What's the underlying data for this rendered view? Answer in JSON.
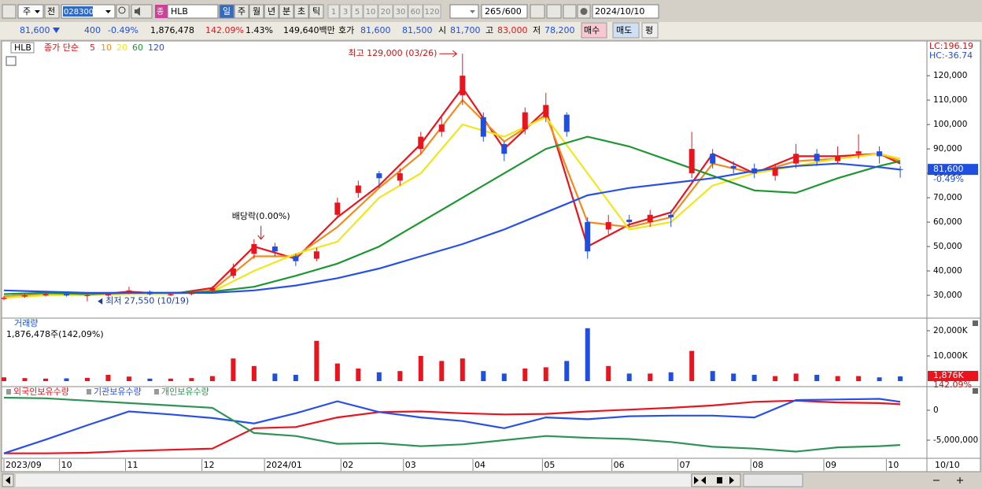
{
  "toolbar": {
    "market": "주",
    "prev": "전",
    "code": "028300",
    "type_badge": "종",
    "name": "HLB",
    "periods": [
      "일",
      "주",
      "월",
      "년",
      "분",
      "초",
      "틱"
    ],
    "intervals": [
      "1",
      "3",
      "5",
      "10",
      "20",
      "30",
      "60",
      "120"
    ],
    "count": "265",
    "max": "/600",
    "date": "2024/10/10"
  },
  "quote": {
    "price": "81,600",
    "change": "400",
    "change_rate": "-0.49%",
    "volume": "1,876,478",
    "volume_ratio": "142.09%",
    "turnover": "1.43%",
    "amount": "149,640백만",
    "bid_ask_label": "호가",
    "ask": "81,600",
    "bid": "81,500",
    "open_label": "시",
    "open": "81,700",
    "high_label": "고",
    "high": "83,000",
    "low_label": "저",
    "low": "78,200",
    "buy": "매수",
    "sell": "매도",
    "avg": "평"
  },
  "chart_data": [
    {
      "type": "candlestick",
      "title": "HLB",
      "subtitle": "종가 단순",
      "up_color": "#e8141e",
      "down_color": "#1e4fe0",
      "x": [
        0,
        6,
        12,
        18,
        24,
        30,
        36,
        42,
        48,
        54,
        60,
        66,
        72,
        78,
        84,
        90,
        96,
        102,
        108,
        114,
        120,
        126,
        132,
        138,
        144,
        150,
        156,
        162,
        168,
        174,
        180,
        186,
        192,
        198,
        204,
        210,
        216,
        222,
        228,
        234,
        240,
        246,
        252,
        258
      ],
      "open": [
        28500,
        29500,
        30000,
        30500,
        29800,
        30000,
        31000,
        31500,
        30000,
        30500,
        32000,
        38000,
        47000,
        50000,
        46000,
        45000,
        63000,
        72000,
        80000,
        77000,
        90000,
        97000,
        112000,
        103000,
        92000,
        98000,
        103000,
        104000,
        60000,
        57000,
        61000,
        60000,
        63000,
        80000,
        88000,
        83000,
        82000,
        79000,
        84000,
        88000,
        85000,
        88000,
        89000,
        81700
      ],
      "high": [
        29800,
        30600,
        31000,
        31000,
        30500,
        31000,
        33500,
        32000,
        31000,
        31500,
        33800,
        43000,
        53000,
        51500,
        47000,
        49500,
        70000,
        77000,
        81000,
        82000,
        97000,
        103000,
        129000,
        105000,
        93000,
        107000,
        113000,
        105000,
        62000,
        63000,
        63000,
        65000,
        65000,
        97000,
        90000,
        85000,
        84000,
        84000,
        92000,
        90000,
        91000,
        96000,
        91000,
        83000
      ],
      "low": [
        28000,
        29000,
        29500,
        29500,
        27550,
        29600,
        30500,
        30000,
        29700,
        30000,
        31500,
        37000,
        45000,
        46000,
        42000,
        44000,
        62000,
        70000,
        74000,
        75000,
        88000,
        95000,
        108000,
        93000,
        85000,
        96000,
        101000,
        95000,
        45000,
        55000,
        58000,
        58000,
        58000,
        78000,
        82000,
        80000,
        78000,
        77000,
        82000,
        83000,
        84000,
        86000,
        84000,
        78200
      ],
      "close": [
        29000,
        30000,
        30500,
        30000,
        30000,
        30500,
        32000,
        30500,
        30500,
        31000,
        33000,
        41000,
        51000,
        48000,
        44000,
        48000,
        68000,
        75000,
        78000,
        80000,
        95000,
        100000,
        120000,
        95000,
        88000,
        105000,
        108000,
        97000,
        48000,
        60000,
        60000,
        63000,
        62000,
        90000,
        84000,
        82000,
        80000,
        82000,
        88000,
        85000,
        87000,
        89000,
        87000,
        81600
      ],
      "ma": {
        "x": [
          0,
          12,
          24,
          36,
          48,
          60,
          72,
          84,
          96,
          108,
          120,
          132,
          144,
          156,
          168,
          180,
          192,
          204,
          216,
          228,
          240,
          252,
          258
        ],
        "series": [
          {
            "name": "5",
            "color": "#e8141e",
            "values": [
              29500,
              30500,
              30000,
              31500,
              30500,
              33000,
              50000,
              45000,
              62000,
              75000,
              92000,
              115000,
              90000,
              106000,
              50000,
              59000,
              64000,
              88000,
              80000,
              87000,
              87000,
              88000,
              84000
            ]
          },
          {
            "name": "10",
            "color": "#f08c1e",
            "values": [
              29500,
              30500,
              30000,
              31000,
              30500,
              32000,
              46000,
              46000,
              58000,
              74000,
              88000,
              110000,
              93000,
              104000,
              60000,
              58000,
              62000,
              84000,
              80000,
              85000,
              86000,
              88000,
              85000
            ]
          },
          {
            "name": "20",
            "color": "#f0e61e",
            "values": [
              29000,
              30000,
              30000,
              30500,
              30500,
              31500,
              40000,
              47000,
              52000,
              70000,
              80000,
              100000,
              95000,
              103000,
              80000,
              57000,
              60000,
              75000,
              80000,
              83000,
              86000,
              88000,
              86000
            ]
          },
          {
            "name": "60",
            "color": "#1e9632",
            "values": [
              30500,
              31000,
              30500,
              31000,
              31000,
              31500,
              33500,
              38000,
              43000,
              50000,
              60000,
              70000,
              80000,
              90000,
              95000,
              91000,
              85000,
              79000,
              73000,
              72000,
              78000,
              83000,
              85000
            ]
          },
          {
            "name": "120",
            "color": "#2850e6",
            "values": [
              32000,
              31500,
              31000,
              31000,
              31000,
              31000,
              32000,
              34000,
              37000,
              41000,
              46000,
              51000,
              57000,
              64000,
              71000,
              74000,
              76000,
              78000,
              81000,
              83000,
              84000,
              82500,
              81500
            ]
          }
        ]
      },
      "annotations": [
        {
          "text": "최고 129,000 (03/26)",
          "x": 131,
          "y": 129000,
          "arrow": "right"
        },
        {
          "text": "최저 27,550 (10/19)",
          "x": 27,
          "y": 27550,
          "arrow": "left"
        },
        {
          "text": "배당락(0.00%)",
          "x": 74,
          "y": 52000,
          "arrow": "down"
        }
      ],
      "last": {
        "value": 81600,
        "label": "81,600",
        "change": "-0.49%"
      },
      "lc": "LC:196.19",
      "hc": "HC:-36.74",
      "xlim": [
        0,
        265
      ],
      "ylim": [
        21300,
        129400
      ],
      "yticks": [
        {
          "value": 30000,
          "label": "30,000"
        },
        {
          "value": 40000,
          "label": "40,000"
        },
        {
          "value": 50000,
          "label": "50,000"
        },
        {
          "value": 60000,
          "label": "60,000"
        },
        {
          "value": 70000,
          "label": "70,000"
        },
        {
          "value": 80000,
          "label": "80,000"
        },
        {
          "value": 90000,
          "label": "90,000"
        },
        {
          "value": 100000,
          "label": "100,000"
        },
        {
          "value": 110000,
          "label": "110,000"
        },
        {
          "value": 120000,
          "label": "120,000"
        }
      ],
      "grid": false
    },
    {
      "type": "bar",
      "title": "거래량",
      "subtitle": "1,876,478주(142,09%)",
      "x": [
        0,
        6,
        12,
        18,
        24,
        30,
        36,
        42,
        48,
        54,
        60,
        66,
        72,
        78,
        84,
        90,
        96,
        102,
        108,
        114,
        120,
        126,
        132,
        138,
        144,
        150,
        156,
        162,
        168,
        174,
        180,
        186,
        192,
        198,
        204,
        210,
        216,
        222,
        228,
        234,
        240,
        246,
        252,
        258
      ],
      "values": [
        1500,
        1200,
        1000,
        1100,
        1300,
        2500,
        1800,
        1000,
        1000,
        1200,
        2000,
        9000,
        6000,
        3000,
        2500,
        16000,
        7000,
        5000,
        3500,
        4000,
        10000,
        8000,
        9000,
        4000,
        3000,
        5000,
        5500,
        8000,
        21000,
        6000,
        3000,
        3000,
        3500,
        12000,
        4000,
        3000,
        2500,
        2000,
        3000,
        2500,
        2000,
        2000,
        1500,
        1876
      ],
      "current": {
        "value": 1876,
        "label": "1,876K",
        "ratio": "142.09%"
      },
      "xlim": [
        0,
        265
      ],
      "ylim": [
        -1250,
        23750
      ],
      "yticks": [
        {
          "value": 10000,
          "label": "10,000K"
        },
        {
          "value": 20000,
          "label": "20,000K"
        }
      ],
      "grid": false
    },
    {
      "type": "line",
      "x": [
        0,
        12,
        24,
        36,
        48,
        60,
        72,
        84,
        96,
        108,
        120,
        132,
        144,
        156,
        168,
        180,
        192,
        204,
        216,
        228,
        240,
        252,
        258
      ],
      "series": [
        {
          "name": "외국인보유수량",
          "color": "#e8141e",
          "values": [
            -7200000,
            -7200000,
            -7100000,
            -6800000,
            -6600000,
            -6400000,
            -3000000,
            -2800000,
            -1200000,
            -300000,
            -200000,
            -500000,
            -700000,
            -600000,
            -200000,
            100000,
            400000,
            800000,
            1400000,
            1600000,
            1300000,
            1200000,
            1000000
          ]
        },
        {
          "name": "기관보유수량",
          "color": "#2850e6",
          "values": [
            -7200000,
            -4900000,
            -2500000,
            -200000,
            -700000,
            -1300000,
            -2200000,
            -500000,
            1500000,
            -300000,
            -1200000,
            -1800000,
            -3000000,
            -1200000,
            -1500000,
            -1000000,
            -900000,
            -900000,
            -1200000,
            1700000,
            1800000,
            1900000,
            1400000
          ]
        },
        {
          "name": "개인보유수량",
          "color": "#2e9455",
          "values": [
            2100000,
            2000000,
            1600000,
            1200000,
            800000,
            400000,
            -3800000,
            -4300000,
            -5600000,
            -5500000,
            -6000000,
            -5700000,
            -5000000,
            -4300000,
            -4600000,
            -4800000,
            -5300000,
            -6100000,
            -6400000,
            -6900000,
            -6200000,
            -6000000,
            -5800000
          ]
        }
      ],
      "xlim": [
        0,
        265
      ],
      "ylim": [
        -7760000,
        2760000
      ],
      "yticks": [
        0,
        {
          "value": -5000000,
          "label": "-5,000,000"
        }
      ],
      "xticks": [
        {
          "value": 0,
          "label": "2023/09"
        },
        {
          "value": 16,
          "label": "10"
        },
        {
          "value": 35,
          "label": "11"
        },
        {
          "value": 57,
          "label": "12"
        },
        {
          "value": 75,
          "label": "2024/01"
        },
        {
          "value": 97,
          "label": "02"
        },
        {
          "value": 115,
          "label": "03"
        },
        {
          "value": 135,
          "label": "04"
        },
        {
          "value": 155,
          "label": "05"
        },
        {
          "value": 175,
          "label": "06"
        },
        {
          "value": 194,
          "label": "07"
        },
        {
          "value": 215,
          "label": "08"
        },
        {
          "value": 236,
          "label": "09"
        },
        {
          "value": 254,
          "label": "10"
        }
      ],
      "end_label": "10/10",
      "grid": false
    }
  ]
}
